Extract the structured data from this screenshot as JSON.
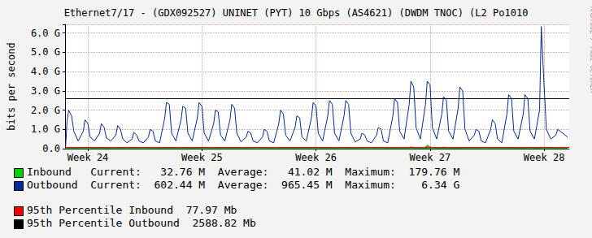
{
  "chart_data": {
    "type": "line",
    "title": "Ethernet7/17 - (GDX092527) UNINET (PYT) 10 Gbps (AS4621) (DWDM TNOC) (L2 Po1010",
    "ylabel": "bits per second",
    "watermark": "RRDTOOL / TOBI OETIKER",
    "grid": true,
    "xlim": [
      23.8,
      28.22
    ],
    "xticks": [
      {
        "value": 24,
        "label": "Week 24"
      },
      {
        "value": 25,
        "label": "Week 25"
      },
      {
        "value": 26,
        "label": "Week 26"
      },
      {
        "value": 27,
        "label": "Week 27"
      },
      {
        "value": 28,
        "label": "Week 28"
      }
    ],
    "ylim": [
      0,
      6450000000.0
    ],
    "yticks": [
      {
        "value": 0,
        "label": "0.0"
      },
      {
        "value": 1000000000.0,
        "label": "1.0 G"
      },
      {
        "value": 2000000000.0,
        "label": "2.0 G"
      },
      {
        "value": 3000000000.0,
        "label": "3.0 G"
      },
      {
        "value": 4000000000.0,
        "label": "4.0 G"
      },
      {
        "value": 5000000000.0,
        "label": "5.0 G"
      },
      {
        "value": 6000000000.0,
        "label": "6.0 G"
      }
    ],
    "x": [
      23.805,
      23.817,
      23.832,
      23.857,
      23.877,
      23.915,
      23.96,
      23.975,
      24.0,
      24.02,
      24.058,
      24.103,
      24.118,
      24.143,
      24.163,
      24.201,
      24.246,
      24.261,
      24.286,
      24.306,
      24.343,
      24.388,
      24.403,
      24.428,
      24.448,
      24.486,
      24.531,
      24.546,
      24.571,
      24.591,
      24.629,
      24.674,
      24.689,
      24.714,
      24.734,
      24.772,
      24.817,
      24.832,
      24.857,
      24.877,
      24.915,
      24.96,
      24.975,
      25.0,
      25.02,
      25.058,
      25.103,
      25.118,
      25.143,
      25.163,
      25.201,
      25.246,
      25.261,
      25.286,
      25.306,
      25.343,
      25.388,
      25.403,
      25.428,
      25.448,
      25.486,
      25.531,
      25.546,
      25.571,
      25.591,
      25.629,
      25.674,
      25.689,
      25.714,
      25.734,
      25.772,
      25.817,
      25.832,
      25.857,
      25.877,
      25.915,
      25.96,
      25.975,
      26.0,
      26.02,
      26.058,
      26.103,
      26.118,
      26.143,
      26.163,
      26.201,
      26.246,
      26.261,
      26.286,
      26.306,
      26.343,
      26.388,
      26.403,
      26.428,
      26.448,
      26.486,
      26.531,
      26.546,
      26.571,
      26.591,
      26.629,
      26.674,
      26.689,
      26.714,
      26.734,
      26.772,
      26.817,
      26.832,
      26.857,
      26.877,
      26.915,
      26.96,
      26.975,
      27.0,
      27.02,
      27.058,
      27.103,
      27.118,
      27.143,
      27.163,
      27.201,
      27.246,
      27.261,
      27.286,
      27.306,
      27.343,
      27.388,
      27.403,
      27.428,
      27.448,
      27.486,
      27.531,
      27.546,
      27.571,
      27.591,
      27.629,
      27.674,
      27.689,
      27.714,
      27.734,
      27.772,
      27.817,
      27.832,
      27.857,
      27.877,
      27.915,
      27.96,
      27.975,
      28.0,
      28.02,
      28.058,
      28.103,
      28.118,
      28.143,
      28.163,
      28.205
    ],
    "series": [
      {
        "name": "Inbound",
        "type": "area",
        "color": "#00cf00",
        "summary": "Current:   32.76 M  Average:   41.02 M  Maximum:  179.76 M",
        "values": [
          10000000.0,
          30000000.0,
          45000000.0,
          40000000.0,
          25000000.0,
          20000000.0,
          35000000.0,
          50000000.0,
          45000000.0,
          25000000.0,
          20000000.0,
          35000000.0,
          50000000.0,
          45000000.0,
          25000000.0,
          20000000.0,
          35000000.0,
          50000000.0,
          45000000.0,
          25000000.0,
          15000000.0,
          20000000.0,
          30000000.0,
          25000000.0,
          15000000.0,
          15000000.0,
          20000000.0,
          30000000.0,
          25000000.0,
          15000000.0,
          20000000.0,
          35000000.0,
          50000000.0,
          45000000.0,
          25000000.0,
          20000000.0,
          35000000.0,
          50000000.0,
          45000000.0,
          25000000.0,
          20000000.0,
          35000000.0,
          50000000.0,
          45000000.0,
          25000000.0,
          20000000.0,
          35000000.0,
          50000000.0,
          45000000.0,
          25000000.0,
          20000000.0,
          35000000.0,
          50000000.0,
          45000000.0,
          25000000.0,
          15000000.0,
          20000000.0,
          30000000.0,
          25000000.0,
          15000000.0,
          15000000.0,
          20000000.0,
          30000000.0,
          25000000.0,
          15000000.0,
          20000000.0,
          35000000.0,
          50000000.0,
          45000000.0,
          25000000.0,
          20000000.0,
          35000000.0,
          50000000.0,
          45000000.0,
          25000000.0,
          20000000.0,
          45000000.0,
          70000000.0,
          55000000.0,
          25000000.0,
          20000000.0,
          35000000.0,
          50000000.0,
          45000000.0,
          25000000.0,
          20000000.0,
          35000000.0,
          50000000.0,
          45000000.0,
          25000000.0,
          15000000.0,
          20000000.0,
          30000000.0,
          25000000.0,
          15000000.0,
          15000000.0,
          20000000.0,
          30000000.0,
          25000000.0,
          15000000.0,
          20000000.0,
          35000000.0,
          50000000.0,
          45000000.0,
          25000000.0,
          25000000.0,
          60000000.0,
          90000000.0,
          70000000.0,
          30000000.0,
          25000000.0,
          80000000.0,
          179760000.0,
          100000000.0,
          35000000.0,
          25000000.0,
          55000000.0,
          80000000.0,
          65000000.0,
          30000000.0,
          20000000.0,
          35000000.0,
          50000000.0,
          45000000.0,
          25000000.0,
          15000000.0,
          20000000.0,
          30000000.0,
          25000000.0,
          15000000.0,
          15000000.0,
          20000000.0,
          30000000.0,
          25000000.0,
          15000000.0,
          20000000.0,
          35000000.0,
          50000000.0,
          45000000.0,
          25000000.0,
          20000000.0,
          35000000.0,
          50000000.0,
          45000000.0,
          25000000.0,
          25000000.0,
          50000000.0,
          75000000.0,
          60000000.0,
          30000000.0,
          20000000.0,
          35000000.0,
          50000000.0,
          45000000.0,
          25000000.0,
          32760000.0
        ]
      },
      {
        "name": "Outbound",
        "type": "line",
        "color": "#002a97",
        "summary": "Current:  602.44 M  Average:  965.45 M  Maximum:    6.34 G",
        "values": [
          100000000.0,
          1400000000.0,
          2000000000.0,
          1700000000.0,
          900000000.0,
          400000000.0,
          900000000.0,
          1500000000.0,
          1300000000.0,
          600000000.0,
          400000000.0,
          800000000.0,
          1300000000.0,
          1100000000.0,
          550000000.0,
          400000000.0,
          700000000.0,
          1200000000.0,
          1000000000.0,
          500000000.0,
          300000000.0,
          500000000.0,
          850000000.0,
          700000000.0,
          400000000.0,
          300000000.0,
          600000000.0,
          1000000000.0,
          900000000.0,
          400000000.0,
          300000000.0,
          1600000000.0,
          2400000000.0,
          2300000000.0,
          800000000.0,
          400000000.0,
          1500000000.0,
          2200000000.0,
          2100000000.0,
          800000000.0,
          400000000.0,
          1600000000.0,
          2400000000.0,
          2200000000.0,
          800000000.0,
          400000000.0,
          1300000000.0,
          2000000000.0,
          1900000000.0,
          700000000.0,
          400000000.0,
          1500000000.0,
          2300000000.0,
          2100000000.0,
          800000000.0,
          350000000.0,
          600000000.0,
          900000000.0,
          800000000.0,
          400000000.0,
          300000000.0,
          600000000.0,
          1000000000.0,
          900000000.0,
          400000000.0,
          300000000.0,
          1300000000.0,
          2000000000.0,
          1800000000.0,
          700000000.0,
          400000000.0,
          1100000000.0,
          1700000000.0,
          1600000000.0,
          600000000.0,
          400000000.0,
          1600000000.0,
          2400000000.0,
          2200000000.0,
          800000000.0,
          400000000.0,
          1700000000.0,
          2500000000.0,
          2300000000.0,
          800000000.0,
          400000000.0,
          1700000000.0,
          2500000000.0,
          2300000000.0,
          800000000.0,
          350000000.0,
          500000000.0,
          800000000.0,
          700000000.0,
          400000000.0,
          300000000.0,
          700000000.0,
          1100000000.0,
          1000000000.0,
          400000000.0,
          300000000.0,
          1700000000.0,
          2600000000.0,
          2400000000.0,
          900000000.0,
          500000000.0,
          2300000000.0,
          3500000000.0,
          3200000000.0,
          1100000000.0,
          500000000.0,
          2300000000.0,
          3500000000.0,
          3300000000.0,
          1100000000.0,
          500000000.0,
          1800000000.0,
          2700000000.0,
          2500000000.0,
          900000000.0,
          500000000.0,
          2100000000.0,
          3200000000.0,
          3000000000.0,
          1000000000.0,
          400000000.0,
          700000000.0,
          1000000000.0,
          900000000.0,
          400000000.0,
          300000000.0,
          1000000000.0,
          1500000000.0,
          1300000000.0,
          500000000.0,
          300000000.0,
          1800000000.0,
          2800000000.0,
          2600000000.0,
          900000000.0,
          500000000.0,
          1800000000.0,
          2800000000.0,
          2600000000.0,
          900000000.0,
          500000000.0,
          2000000000.0,
          6340000000.0,
          3200000000.0,
          1000000000.0,
          500000000.0,
          700000000.0,
          1000000000.0,
          900000000.0,
          800000000.0,
          602440000.0
        ]
      }
    ],
    "percentiles": [
      {
        "label": "95th Percentile Inbound",
        "value": 77970000.0,
        "value_label": "77.97 Mb",
        "color": "#ff0000"
      },
      {
        "label": "95th Percentile Outbound",
        "value": 2588820000.0,
        "value_label": "2588.82 Mb",
        "color": "#000000"
      }
    ]
  }
}
